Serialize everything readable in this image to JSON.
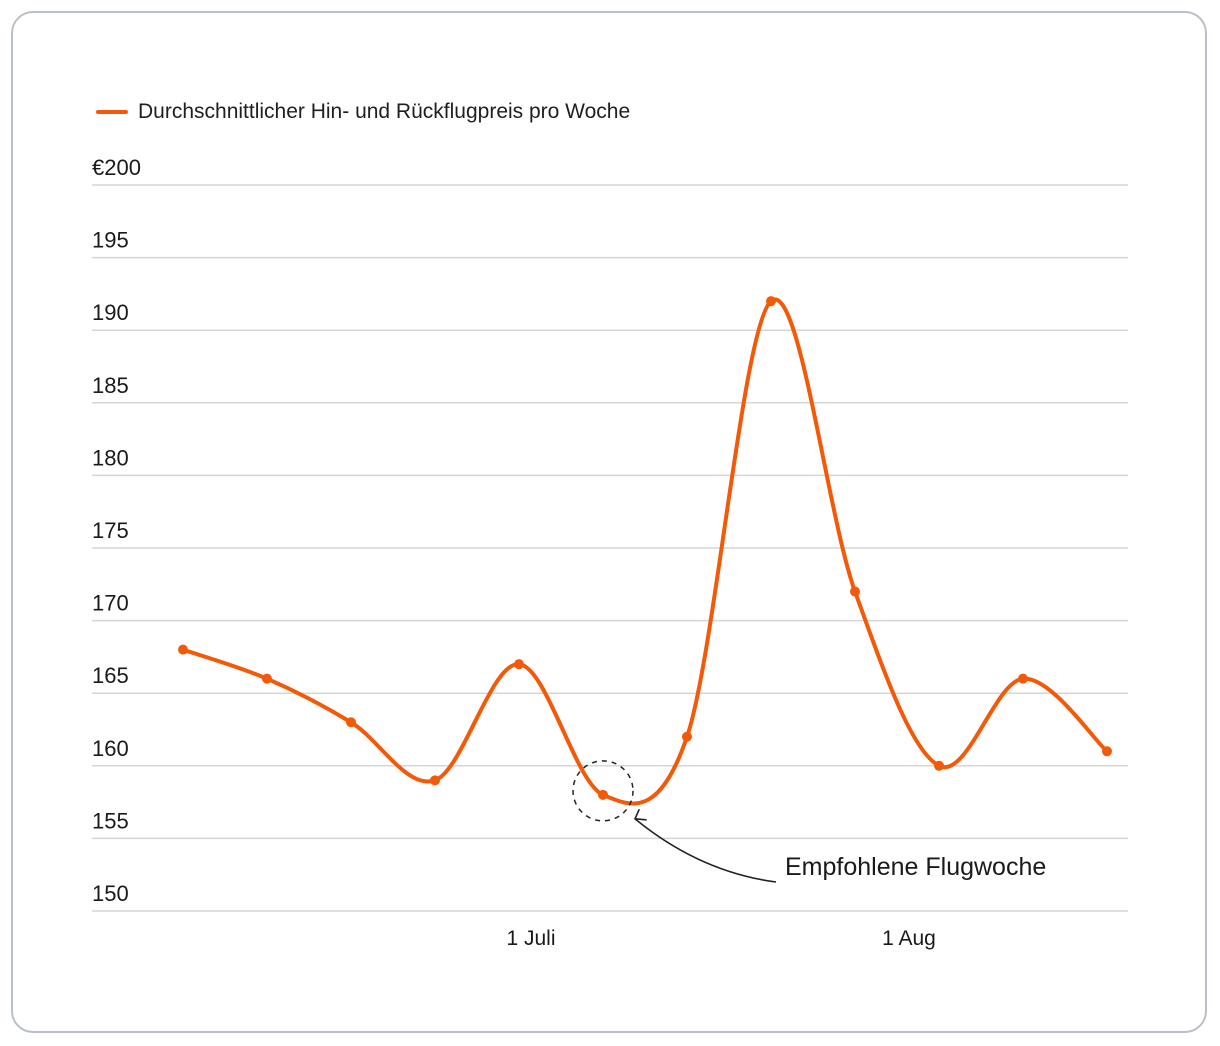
{
  "chart_data": {
    "type": "line",
    "legend": {
      "label": "Durchschnittlicher Hin- und Rückflugpreis pro Woche",
      "position": "top-left"
    },
    "series": [
      {
        "name": "Durchschnittlicher Hin- und Rückflugpreis pro Woche",
        "color": "#F25A0A",
        "values": [
          168,
          166,
          163,
          159,
          167,
          158,
          162,
          192,
          172,
          160,
          166,
          161
        ]
      }
    ],
    "y_tick_labels": [
      "€200",
      "195",
      "190",
      "185",
      "180",
      "175",
      "170",
      "165",
      "160",
      "155",
      "150"
    ],
    "y_tick_values": [
      200,
      195,
      190,
      185,
      180,
      175,
      170,
      165,
      160,
      155,
      150
    ],
    "ylim": [
      150,
      200
    ],
    "x_tick_labels": [
      {
        "label": "1 Juli",
        "at_index": 4
      },
      {
        "label": "1 Aug",
        "at_index": 8.5
      }
    ],
    "grid": "horizontal",
    "annotation": {
      "text": "Empfohlene Flugwoche",
      "point_index": 5
    }
  }
}
